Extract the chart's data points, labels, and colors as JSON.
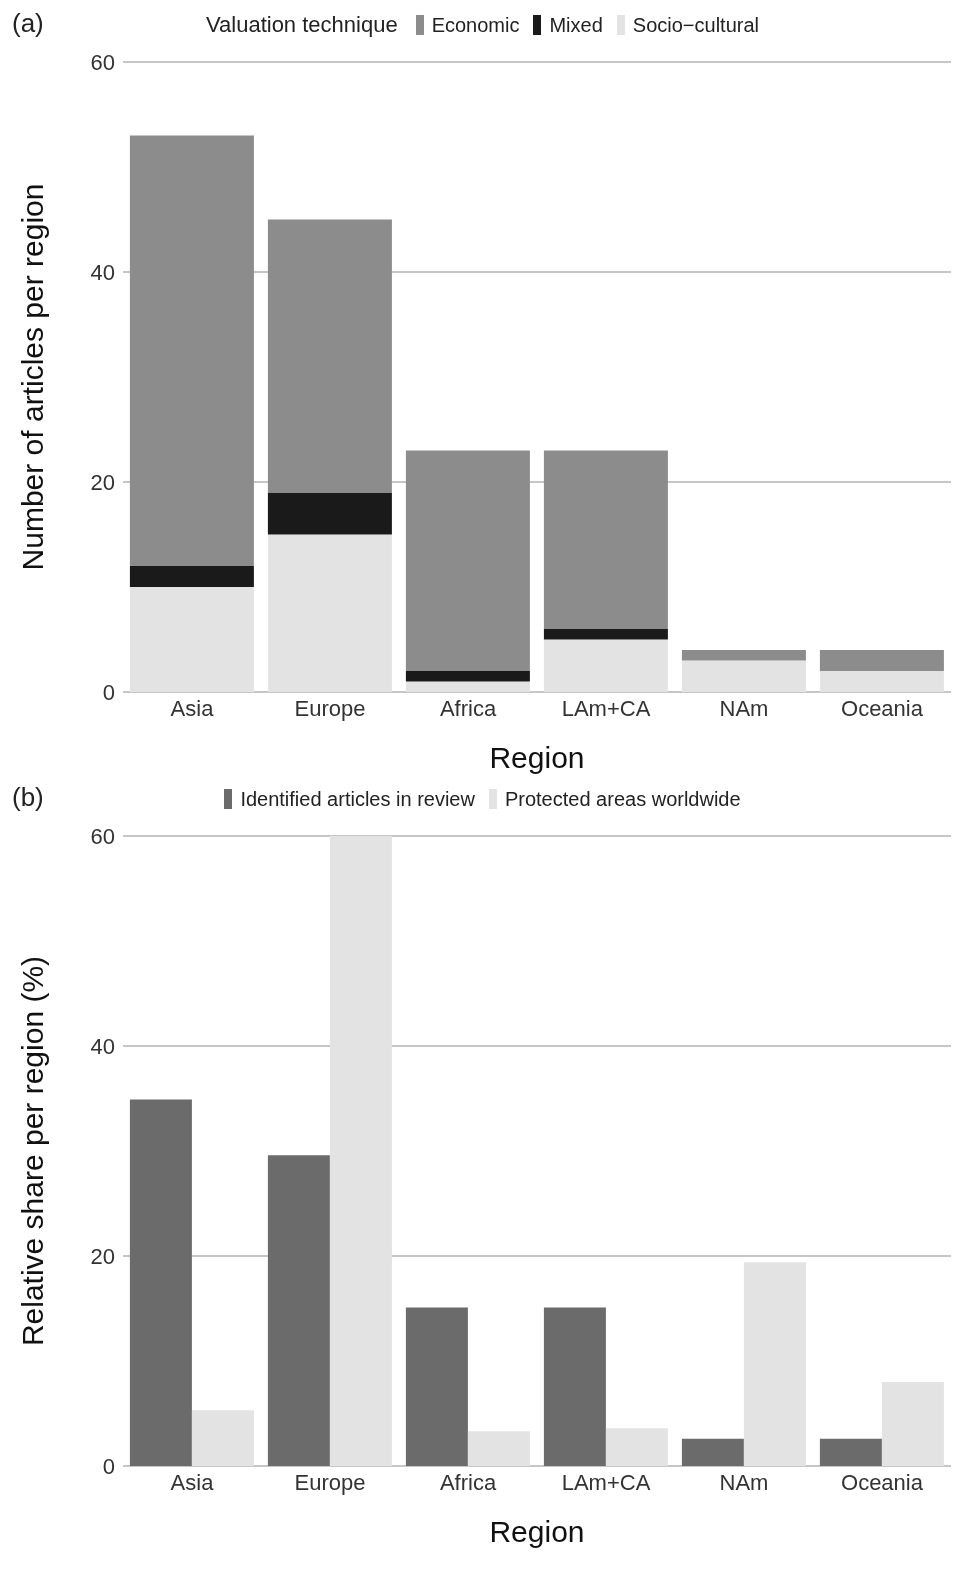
{
  "chart_data": [
    {
      "type": "bar",
      "title": "(a)",
      "xlabel": "Region",
      "ylabel": "Number of articles per region",
      "legend_title": "Valuation technique",
      "legend": "top",
      "grid": "y",
      "stacked": true,
      "categories": [
        "Asia",
        "Europe",
        "Africa",
        "LAm+CA",
        "NAm",
        "Oceania"
      ],
      "ylim": [
        0,
        60
      ],
      "yticks": [
        0,
        20,
        40,
        60
      ],
      "series": [
        {
          "name": "Socio−cultural",
          "color": "#e3e3e3",
          "values": [
            10,
            15,
            1,
            5,
            3,
            2
          ]
        },
        {
          "name": "Mixed",
          "color": "#1a1a1a",
          "values": [
            2,
            4,
            1,
            1,
            0,
            0
          ]
        },
        {
          "name": "Economic",
          "color": "#8c8c8c",
          "values": [
            41,
            26,
            21,
            17,
            1,
            2
          ]
        }
      ]
    },
    {
      "type": "bar",
      "title": "(b)",
      "xlabel": "Region",
      "ylabel": "Relative share per region (%)",
      "legend": "top",
      "grid": "y",
      "categories": [
        "Asia",
        "Europe",
        "Africa",
        "LAm+CA",
        "NAm",
        "Oceania"
      ],
      "ylim": [
        0,
        60
      ],
      "yticks": [
        0,
        20,
        40,
        60
      ],
      "series": [
        {
          "name": "Identified articles in review",
          "color": "#6b6b6b",
          "values": [
            34.9,
            29.6,
            15.1,
            15.1,
            2.6,
            2.6
          ]
        },
        {
          "name": "Protected areas worldwide",
          "color": "#e3e3e3",
          "values": [
            5.3,
            60,
            3.3,
            3.6,
            19.4,
            8.0
          ]
        }
      ]
    }
  ]
}
